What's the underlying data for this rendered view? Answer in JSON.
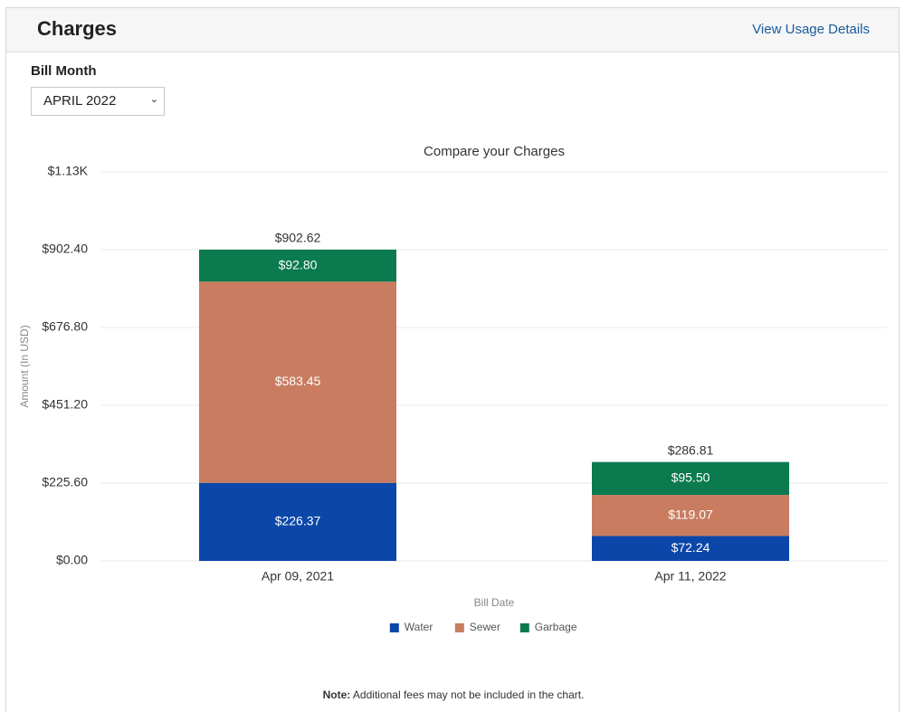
{
  "header": {
    "title": "Charges",
    "link": "View Usage Details"
  },
  "bill_month": {
    "label": "Bill Month",
    "selected": "APRIL 2022"
  },
  "chart_data": {
    "type": "bar",
    "stacked": true,
    "title": "Compare your Charges",
    "x_label": "Bill Date",
    "y_label": "Amount (In USD)",
    "categories": [
      "Apr 09, 2021",
      "Apr 11, 2022"
    ],
    "series": [
      {
        "name": "Water",
        "color": "#0b47a9",
        "values": [
          226.37,
          72.24
        ],
        "value_labels": [
          "$226.37",
          "$72.24"
        ]
      },
      {
        "name": "Sewer",
        "color": "#c97c5f",
        "values": [
          583.45,
          119.07
        ],
        "value_labels": [
          "$583.45",
          "$119.07"
        ]
      },
      {
        "name": "Garbage",
        "color": "#0b7a4e",
        "values": [
          92.8,
          95.5
        ],
        "value_labels": [
          "$92.80",
          "$95.50"
        ]
      }
    ],
    "totals": [
      902.62,
      286.81
    ],
    "total_labels": [
      "$902.62",
      "$286.81"
    ],
    "ylim": [
      0,
      1128
    ],
    "yticks": [
      {
        "value": 0,
        "label": "$0.00"
      },
      {
        "value": 225.6,
        "label": "$225.60"
      },
      {
        "value": 451.2,
        "label": "$451.20"
      },
      {
        "value": 676.8,
        "label": "$676.80"
      },
      {
        "value": 902.4,
        "label": "$902.40"
      },
      {
        "value": 1128,
        "label": "$1.13K"
      }
    ],
    "grid": true,
    "legend": "bottom"
  },
  "note": {
    "label": "Note:",
    "text": "Additional fees may not be included in the chart."
  }
}
